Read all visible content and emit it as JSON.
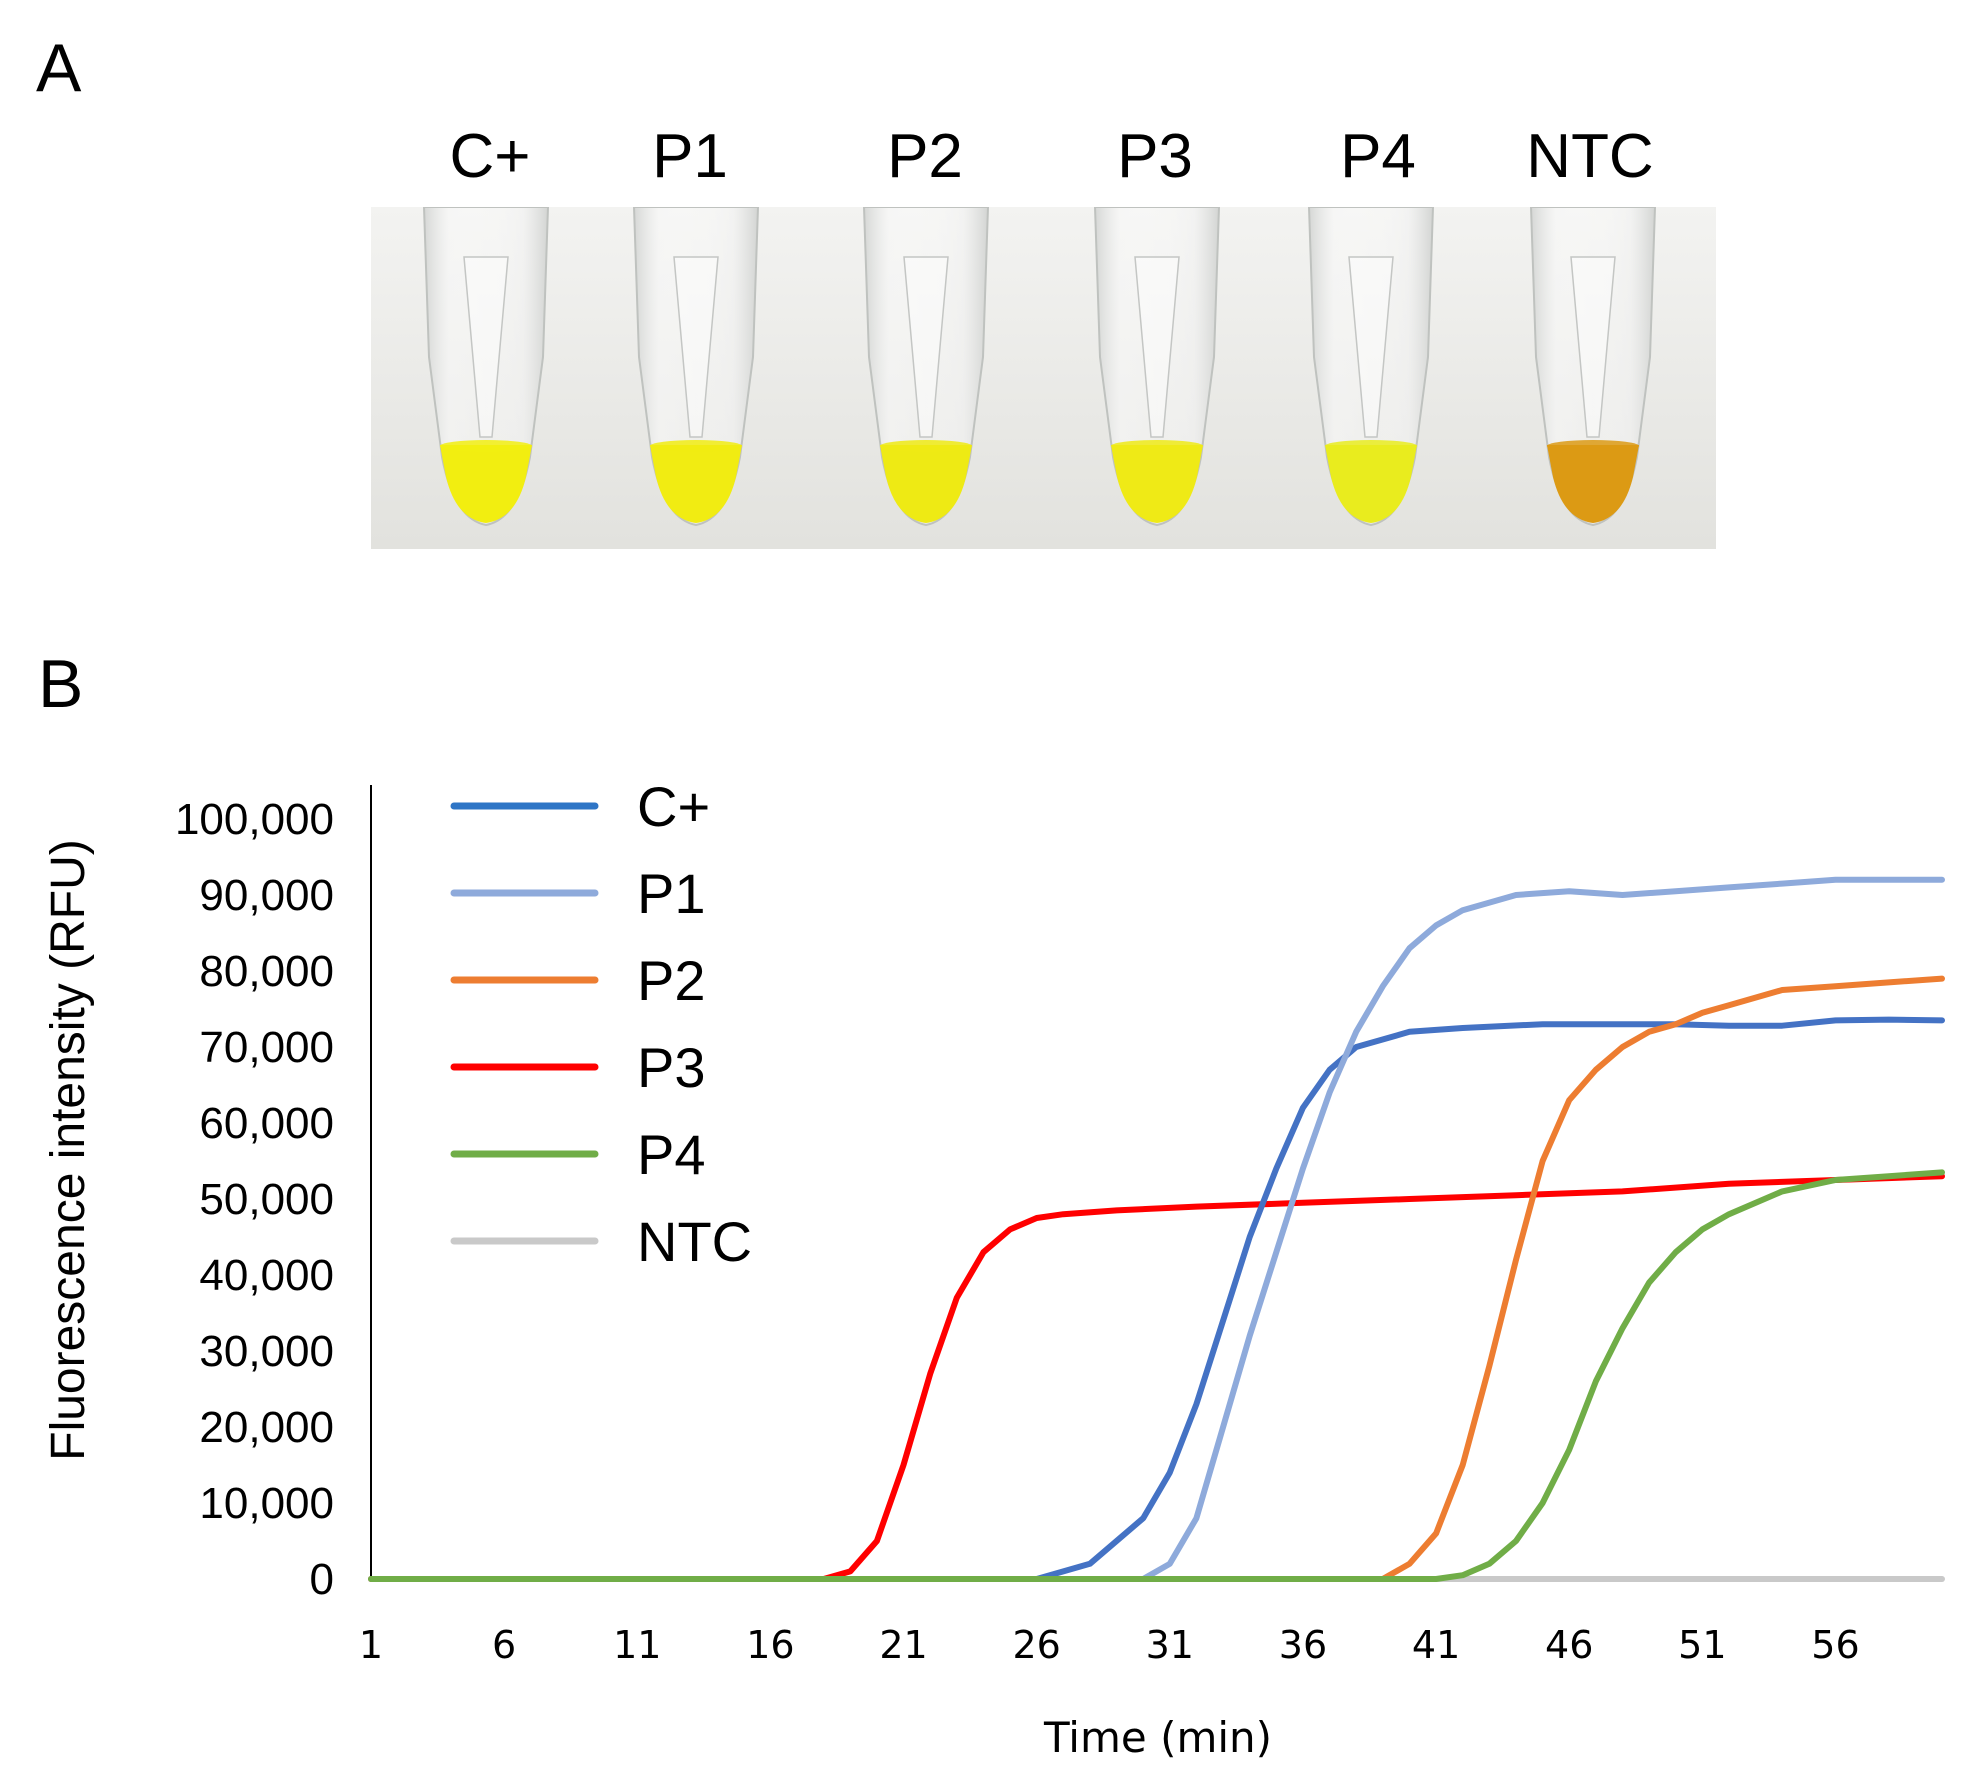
{
  "panel_a": {
    "letter": "A",
    "tubes": [
      {
        "label": "C+",
        "liquid_color": "#f2ee10"
      },
      {
        "label": "P1",
        "liquid_color": "#f1ec12"
      },
      {
        "label": "P2",
        "liquid_color": "#eeea14"
      },
      {
        "label": "P3",
        "liquid_color": "#efea16"
      },
      {
        "label": "P4",
        "liquid_color": "#e9ec1e"
      },
      {
        "label": "NTC",
        "liquid_color": "#dc9a14"
      }
    ]
  },
  "panel_b": {
    "letter": "B"
  },
  "chart_data": {
    "type": "line",
    "title": "",
    "xlabel": "Time (min)",
    "ylabel": "Fluorescence intensity (RFU)",
    "xlim": [
      1,
      60
    ],
    "ylim": [
      0,
      100000
    ],
    "x_ticks": [
      "1",
      "6",
      "11",
      "16",
      "21",
      "26",
      "31",
      "36",
      "41",
      "46",
      "51",
      "56"
    ],
    "y_ticks": [
      "0",
      "10,000",
      "20,000",
      "30,000",
      "40,000",
      "50,000",
      "60,000",
      "70,000",
      "80,000",
      "90,000",
      "100,000"
    ],
    "legend_position": "top-left",
    "series": [
      {
        "name": "C+",
        "color": "#4472c4",
        "legend_color": "#2e75c6",
        "x": [
          1,
          26,
          28,
          30,
          31,
          32,
          33,
          34,
          35,
          36,
          37,
          38,
          40,
          42,
          45,
          48,
          50,
          52,
          54,
          56,
          58,
          60
        ],
        "y": [
          0,
          0,
          2000,
          8000,
          14000,
          23000,
          34000,
          45000,
          54000,
          62000,
          67000,
          70000,
          72000,
          72500,
          73000,
          73000,
          73000,
          72800,
          72800,
          73500,
          73600,
          73500
        ]
      },
      {
        "name": "P1",
        "color": "#8eaadb",
        "legend_color": "#8eaadb",
        "x": [
          1,
          30,
          31,
          32,
          33,
          34,
          35,
          36,
          37,
          38,
          39,
          40,
          41,
          42,
          44,
          46,
          48,
          50,
          52,
          54,
          56,
          58,
          60
        ],
        "y": [
          0,
          0,
          2000,
          8000,
          20000,
          32000,
          43000,
          54000,
          64000,
          72000,
          78000,
          83000,
          86000,
          88000,
          90000,
          90500,
          90000,
          90500,
          91000,
          91500,
          92000,
          92000,
          92000
        ]
      },
      {
        "name": "P2",
        "color": "#ed7d31",
        "legend_color": "#ed7d31",
        "x": [
          1,
          39,
          40,
          41,
          42,
          43,
          44,
          45,
          46,
          47,
          48,
          49,
          50,
          51,
          52,
          54,
          56,
          58,
          60
        ],
        "y": [
          0,
          0,
          2000,
          6000,
          15000,
          28000,
          42000,
          55000,
          63000,
          67000,
          70000,
          72000,
          73000,
          74500,
          75500,
          77500,
          78000,
          78500,
          79000
        ]
      },
      {
        "name": "P3",
        "color": "#ff0000",
        "legend_color": "#ff0000",
        "x": [
          1,
          18,
          19,
          20,
          21,
          22,
          23,
          24,
          25,
          26,
          27,
          29,
          32,
          36,
          40,
          44,
          48,
          52,
          56,
          60
        ],
        "y": [
          0,
          0,
          1000,
          5000,
          15000,
          27000,
          37000,
          43000,
          46000,
          47500,
          48000,
          48500,
          49000,
          49500,
          50000,
          50500,
          51000,
          52000,
          52500,
          53000
        ]
      },
      {
        "name": "P4",
        "color": "#70ad47",
        "legend_color": "#70ad47",
        "x": [
          1,
          41,
          42,
          43,
          44,
          45,
          46,
          47,
          48,
          49,
          50,
          51,
          52,
          54,
          56,
          58,
          60
        ],
        "y": [
          0,
          0,
          500,
          2000,
          5000,
          10000,
          17000,
          26000,
          33000,
          39000,
          43000,
          46000,
          48000,
          51000,
          52500,
          53000,
          53500
        ]
      },
      {
        "name": "NTC",
        "color": "#c9c9c9",
        "legend_color": "#c9c9c9",
        "x": [
          1,
          60
        ],
        "y": [
          0,
          0
        ]
      }
    ]
  }
}
